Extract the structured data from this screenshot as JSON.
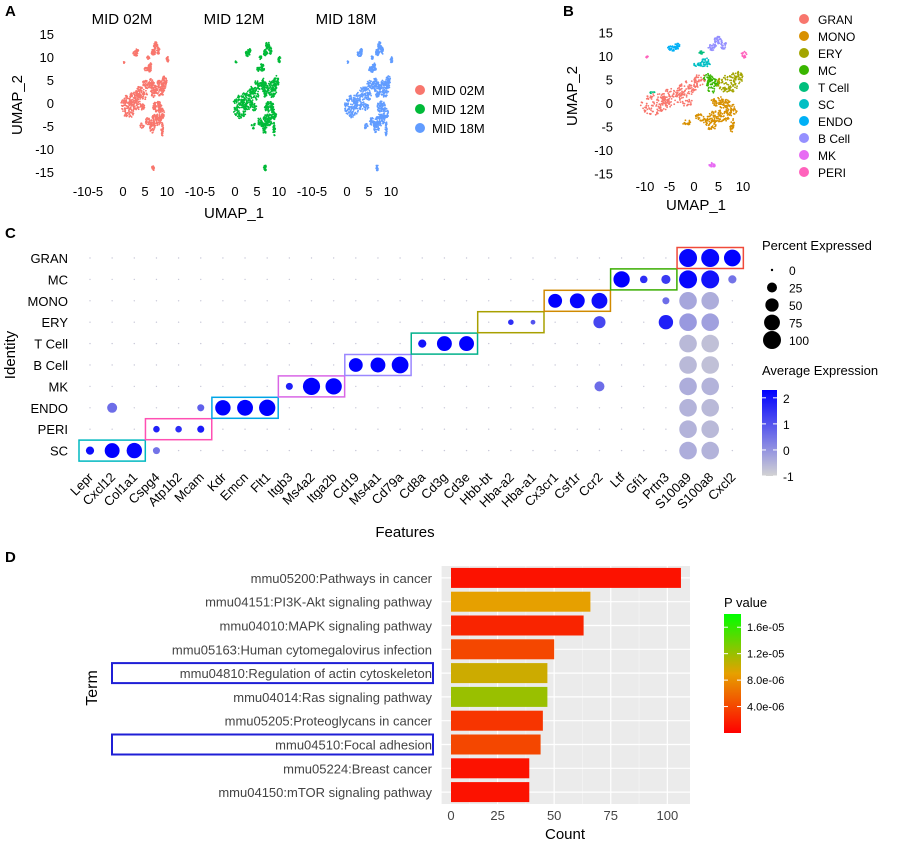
{
  "panels": {
    "a": "A",
    "b": "B",
    "c": "C",
    "d": "D"
  },
  "umap": {
    "xlabel": "UMAP_1",
    "ylabel": "UMAP_2",
    "xticks": [
      "-10-5",
      "0",
      "5",
      "10"
    ],
    "yticks": [
      "15",
      "10",
      "5",
      "0",
      "-5",
      "-10",
      "-15"
    ]
  },
  "colors": {
    "MID 02M": "#f8766d",
    "MID 12M": "#00ba38",
    "MID 18M": "#619cff",
    "GRAN": "#f8766d",
    "MONO": "#d89000",
    "ERY": "#a3a500",
    "MC": "#39b600",
    "T Cell": "#00bf7d",
    "SC": "#00bfc4",
    "ENDO": "#00b0f6",
    "B Cell": "#9590ff",
    "MK": "#e76bf3",
    "PERI": "#ff62bc"
  },
  "chart_data": [
    {
      "id": "A",
      "type": "scatter",
      "facets": [
        "MID 02M",
        "MID 12M",
        "MID 18M"
      ],
      "legend": [
        "MID 02M",
        "MID 12M",
        "MID 18M"
      ],
      "xlabel": "UMAP_1",
      "ylabel": "UMAP_2",
      "xlim": [
        -13,
        12
      ],
      "ylim": [
        -16,
        16
      ]
    },
    {
      "id": "B",
      "type": "scatter",
      "legend": [
        "GRAN",
        "MONO",
        "ERY",
        "MC",
        "T Cell",
        "SC",
        "ENDO",
        "B Cell",
        "MK",
        "PERI"
      ],
      "xlabel": "UMAP_1",
      "ylabel": "UMAP_2",
      "xticks": [
        "-10",
        "-5",
        "0",
        "5",
        "10"
      ],
      "yticks": [
        "15",
        "10",
        "5",
        "0",
        "-5",
        "-10",
        "-15"
      ],
      "xlim": [
        -12,
        12
      ],
      "ylim": [
        -16,
        16
      ]
    },
    {
      "id": "C",
      "type": "heatmap",
      "xlabel": "Features",
      "ylabel": "Identity",
      "features": [
        "Lepr",
        "Cxcl12",
        "Col1a1",
        "Cspg4",
        "Atp1b2",
        "Mcam",
        "Kdr",
        "Emcn",
        "Flt1",
        "Itgb3",
        "Ms4a2",
        "Itga2b",
        "Cd19",
        "Ms4a1",
        "Cd79a",
        "Cd8a",
        "Cd3g",
        "Cd3e",
        "Hbb-bt",
        "Hba-a2",
        "Hba-a1",
        "Cx3cr1",
        "Csf1r",
        "Ccr2",
        "Ltf",
        "Gfi1",
        "Prtn3",
        "S100a9",
        "S100a8",
        "Cxcl2"
      ],
      "identities": [
        "GRAN",
        "MC",
        "MONO",
        "ERY",
        "T Cell",
        "B Cell",
        "MK",
        "ENDO",
        "PERI",
        "SC"
      ],
      "size_legend_title": "Percent Expressed",
      "size_legend": [
        "0",
        "25",
        "50",
        "75",
        "100"
      ],
      "color_legend_title": "Average Expression",
      "color_legend": [
        "2",
        "1",
        "0",
        "-1"
      ],
      "color_range": [
        -1,
        2.3
      ],
      "highlight_boxes": [
        {
          "identity": "SC",
          "features": [
            0,
            2
          ],
          "color": "#00b8c0"
        },
        {
          "identity": "PERI",
          "features": [
            3,
            5
          ],
          "color": "#ff4fb3"
        },
        {
          "identity": "ENDO",
          "features": [
            6,
            8
          ],
          "color": "#00a6e6"
        },
        {
          "identity": "MK",
          "features": [
            9,
            11
          ],
          "color": "#d966e6"
        },
        {
          "identity": "B Cell",
          "features": [
            12,
            14
          ],
          "color": "#9a87ff"
        },
        {
          "identity": "T Cell",
          "features": [
            15,
            17
          ],
          "color": "#00b08a"
        },
        {
          "identity": "ERY",
          "features": [
            18,
            20
          ],
          "color": "#a8a000"
        },
        {
          "identity": "MONO",
          "features": [
            21,
            23
          ],
          "color": "#d08a00"
        },
        {
          "identity": "MC",
          "features": [
            24,
            26
          ],
          "color": "#3aad00"
        },
        {
          "identity": "GRAN",
          "features": [
            27,
            29
          ],
          "color": "#f04a3a"
        }
      ],
      "dots": [
        {
          "identity": "SC",
          "feature": "Lepr",
          "pct": 15,
          "avg": 2.1
        },
        {
          "identity": "SC",
          "feature": "Cxcl12",
          "pct": 65,
          "avg": 2.3
        },
        {
          "identity": "SC",
          "feature": "Col1a1",
          "pct": 70,
          "avg": 2.2
        },
        {
          "identity": "ENDO",
          "feature": "Cxcl12",
          "pct": 25,
          "avg": 0.6
        },
        {
          "identity": "PERI",
          "feature": "Cspg4",
          "pct": 8,
          "avg": 1.8
        },
        {
          "identity": "PERI",
          "feature": "Atp1b2",
          "pct": 8,
          "avg": 1.6
        },
        {
          "identity": "PERI",
          "feature": "Mcam",
          "pct": 10,
          "avg": 1.9
        },
        {
          "identity": "SC",
          "feature": "Cspg4",
          "pct": 10,
          "avg": 0.5
        },
        {
          "identity": "ENDO",
          "feature": "Mcam",
          "pct": 10,
          "avg": 0.8
        },
        {
          "identity": "ENDO",
          "feature": "Kdr",
          "pct": 70,
          "avg": 2.3
        },
        {
          "identity": "ENDO",
          "feature": "Emcn",
          "pct": 75,
          "avg": 2.3
        },
        {
          "identity": "ENDO",
          "feature": "Flt1",
          "pct": 80,
          "avg": 2.3
        },
        {
          "identity": "MK",
          "feature": "Itgb3",
          "pct": 10,
          "avg": 1.8
        },
        {
          "identity": "MK",
          "feature": "Ms4a2",
          "pct": 90,
          "avg": 2.3
        },
        {
          "identity": "MK",
          "feature": "Itga2b",
          "pct": 80,
          "avg": 2.3
        },
        {
          "identity": "B Cell",
          "feature": "Cd19",
          "pct": 55,
          "avg": 2.3
        },
        {
          "identity": "B Cell",
          "feature": "Ms4a1",
          "pct": 65,
          "avg": 2.3
        },
        {
          "identity": "B Cell",
          "feature": "Cd79a",
          "pct": 85,
          "avg": 2.3
        },
        {
          "identity": "T Cell",
          "feature": "Cd8a",
          "pct": 15,
          "avg": 2.0
        },
        {
          "identity": "T Cell",
          "feature": "Cd3g",
          "pct": 65,
          "avg": 2.3
        },
        {
          "identity": "T Cell",
          "feature": "Cd3e",
          "pct": 65,
          "avg": 2.3
        },
        {
          "identity": "ERY",
          "feature": "Hba-a2",
          "pct": 5,
          "avg": 1.6
        },
        {
          "identity": "ERY",
          "feature": "Hba-a1",
          "pct": 3,
          "avg": 1.0
        },
        {
          "identity": "MONO",
          "feature": "Cx3cr1",
          "pct": 55,
          "avg": 2.3
        },
        {
          "identity": "MONO",
          "feature": "Csf1r",
          "pct": 65,
          "avg": 2.2
        },
        {
          "identity": "MONO",
          "feature": "Ccr2",
          "pct": 75,
          "avg": 2.1
        },
        {
          "identity": "ERY",
          "feature": "Ccr2",
          "pct": 40,
          "avg": 1.2
        },
        {
          "identity": "MK",
          "feature": "Ccr2",
          "pct": 25,
          "avg": 0.6
        },
        {
          "identity": "MC",
          "feature": "Ltf",
          "pct": 80,
          "avg": 2.3
        },
        {
          "identity": "MC",
          "feature": "Gfi1",
          "pct": 12,
          "avg": 1.6
        },
        {
          "identity": "MC",
          "feature": "Prtn3",
          "pct": 20,
          "avg": 1.4
        },
        {
          "identity": "ERY",
          "feature": "Prtn3",
          "pct": 60,
          "avg": 1.8
        },
        {
          "identity": "MONO",
          "feature": "Prtn3",
          "pct": 10,
          "avg": 0.6
        },
        {
          "identity": "GRAN",
          "feature": "S100a9",
          "pct": 100,
          "avg": 2.2
        },
        {
          "identity": "GRAN",
          "feature": "S100a8",
          "pct": 100,
          "avg": 2.2
        },
        {
          "identity": "GRAN",
          "feature": "Cxcl2",
          "pct": 85,
          "avg": 2.3
        },
        {
          "identity": "MC",
          "feature": "S100a9",
          "pct": 100,
          "avg": 2.2
        },
        {
          "identity": "MC",
          "feature": "S100a8",
          "pct": 100,
          "avg": 2.0
        },
        {
          "identity": "MC",
          "feature": "Cxcl2",
          "pct": 15,
          "avg": 0.5
        },
        {
          "identity": "MONO",
          "feature": "S100a9",
          "pct": 95,
          "avg": -0.3
        },
        {
          "identity": "MONO",
          "feature": "S100a8",
          "pct": 95,
          "avg": -0.4
        },
        {
          "identity": "ERY",
          "feature": "S100a9",
          "pct": 95,
          "avg": -0.1
        },
        {
          "identity": "ERY",
          "feature": "S100a8",
          "pct": 95,
          "avg": -0.2
        },
        {
          "identity": "T Cell",
          "feature": "S100a9",
          "pct": 95,
          "avg": -0.6
        },
        {
          "identity": "T Cell",
          "feature": "S100a8",
          "pct": 95,
          "avg": -0.7
        },
        {
          "identity": "B Cell",
          "feature": "S100a9",
          "pct": 95,
          "avg": -0.6
        },
        {
          "identity": "B Cell",
          "feature": "S100a8",
          "pct": 95,
          "avg": -0.7
        },
        {
          "identity": "MK",
          "feature": "S100a9",
          "pct": 95,
          "avg": -0.4
        },
        {
          "identity": "MK",
          "feature": "S100a8",
          "pct": 95,
          "avg": -0.5
        },
        {
          "identity": "ENDO",
          "feature": "S100a9",
          "pct": 95,
          "avg": -0.5
        },
        {
          "identity": "ENDO",
          "feature": "S100a8",
          "pct": 95,
          "avg": -0.6
        },
        {
          "identity": "PERI",
          "feature": "S100a9",
          "pct": 95,
          "avg": -0.5
        },
        {
          "identity": "PERI",
          "feature": "S100a8",
          "pct": 95,
          "avg": -0.6
        },
        {
          "identity": "SC",
          "feature": "S100a9",
          "pct": 95,
          "avg": -0.4
        },
        {
          "identity": "SC",
          "feature": "S100a8",
          "pct": 95,
          "avg": -0.5
        }
      ]
    },
    {
      "id": "D",
      "type": "bar",
      "xlabel": "Count",
      "ylabel": "Term",
      "categories": [
        "mmu05200:Pathways in cancer",
        "mmu04151:PI3K-Akt signaling pathway",
        "mmu04010:MAPK signaling pathway",
        "mmu05163:Human cytomegalovirus infection",
        "mmu04810:Regulation of actin cytoskeleton",
        "mmu04014:Ras signaling pathway",
        "mmu05205:Proteoglycans in cancer",
        "mmu04510:Focal adhesion",
        "mmu05224:Breast cancer",
        "mmu04150:mTOR signaling pathway"
      ],
      "values": [
        106,
        66,
        63,
        50,
        47,
        47,
        45,
        44,
        39,
        39
      ],
      "pvalues": [
        1e-06,
        9e-06,
        2e-06,
        4e-06,
        1e-05,
        1.2e-05,
        3e-06,
        4e-06,
        1e-06,
        1e-06
      ],
      "highlighted": [
        "mmu04810:Regulation of actin cytoskeleton",
        "mmu04510:Focal adhesion"
      ],
      "xticks": [
        "0",
        "25",
        "50",
        "75",
        "100"
      ],
      "xlim": [
        0,
        110
      ],
      "legend_title": "P value",
      "legend_ticks": [
        "1.6e-05",
        "1.2e-05",
        "8.0e-06",
        "4.0e-06"
      ],
      "color_range": [
        0,
        1.8e-05
      ]
    }
  ]
}
